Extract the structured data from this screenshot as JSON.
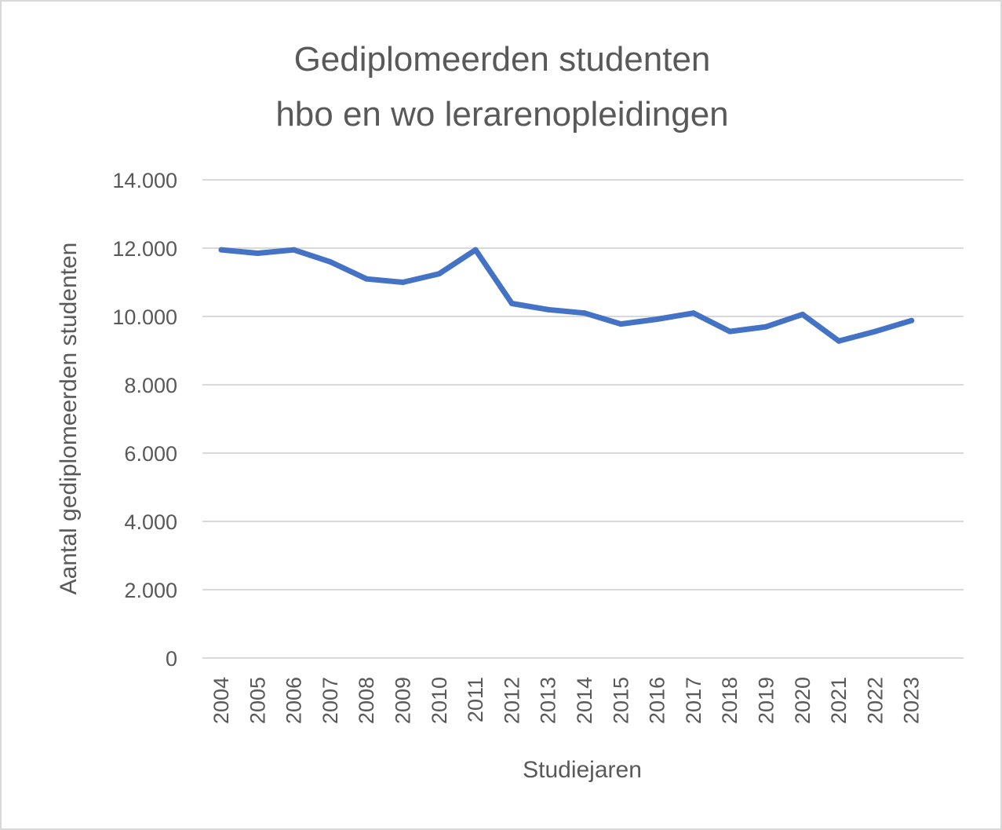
{
  "chart_data": {
    "type": "line",
    "title_lines": [
      "Gediplomeerden studenten",
      "hbo en wo lerarenopleidingen"
    ],
    "xlabel": "Studiejaren",
    "ylabel": "Aantal gediplomeerden studenten",
    "ylim": [
      0,
      14000
    ],
    "yticks": [
      0,
      2000,
      4000,
      6000,
      8000,
      10000,
      12000,
      14000
    ],
    "ytick_labels": [
      "0",
      "2.000",
      "4.000",
      "6.000",
      "8.000",
      "10.000",
      "12.000",
      "14.000"
    ],
    "grid": true,
    "legend": "none",
    "categories": [
      "2004",
      "2005",
      "2006",
      "2007",
      "2008",
      "2009",
      "2010",
      "2011",
      "2012",
      "2013",
      "2014",
      "2015",
      "2016",
      "2017",
      "2018",
      "2019",
      "2020",
      "2021",
      "2022",
      "2023"
    ],
    "series": [
      {
        "color": "#4472c4",
        "values": [
          11950,
          11850,
          11950,
          11600,
          11100,
          11000,
          11250,
          11950,
          10380,
          10200,
          10100,
          9780,
          9920,
          10100,
          9560,
          9700,
          10060,
          9280,
          9560,
          9880
        ]
      }
    ]
  }
}
